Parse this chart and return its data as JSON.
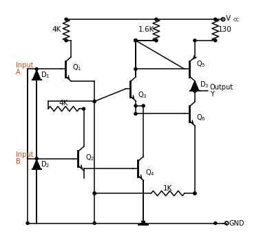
{
  "bg_color": "#ffffff",
  "line_color": "#000000",
  "input_color": "#c8501a",
  "figsize": [
    3.79,
    3.49
  ],
  "dpi": 100,
  "labels": {
    "R1": "4K",
    "R2": "4K",
    "R3": "1.6K",
    "R4": "130",
    "R5": "1K",
    "Q1": "Q1",
    "Q2": "Q2",
    "Q3": "Q3",
    "Q4": "Q4",
    "Q5": "Q5",
    "Q6": "Q6",
    "D1": "D1",
    "D2": "D2",
    "D3": "D3",
    "inA1": "Input",
    "inA2": "A",
    "inB1": "Input",
    "inB2": "B",
    "out1": "Output",
    "out2": "Y",
    "vcc": "VCC",
    "gnd": "GND"
  }
}
